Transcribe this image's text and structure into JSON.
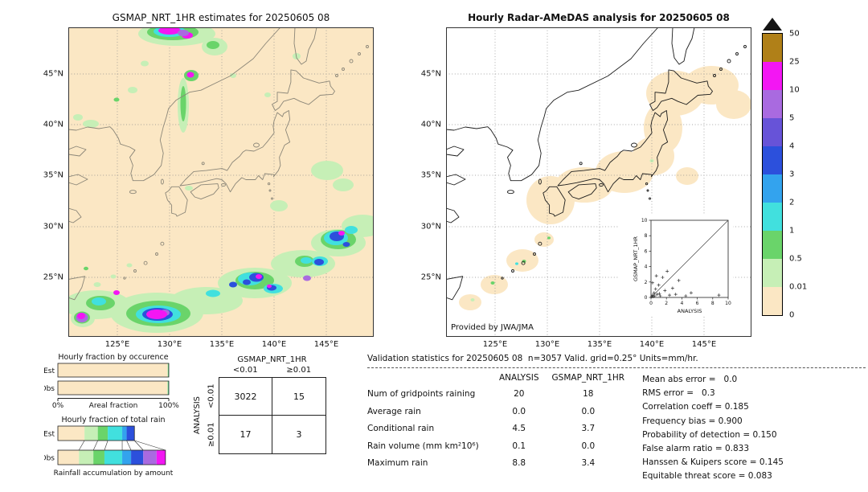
{
  "left_map": {
    "title": "GSMAP_NRT_1HR estimates for 20250605 08",
    "lat_ticks": [
      "45°N",
      "40°N",
      "35°N",
      "30°N",
      "25°N"
    ],
    "lon_ticks": [
      "125°E",
      "130°E",
      "135°E",
      "140°E",
      "145°E"
    ]
  },
  "right_map": {
    "title": "Hourly Radar-AMeDAS analysis for 20250605 08",
    "lat_ticks": [
      "45°N",
      "40°N",
      "35°N",
      "30°N",
      "25°N"
    ],
    "lon_ticks": [
      "125°E",
      "130°E",
      "135°E",
      "140°E",
      "145°E"
    ],
    "credit": "Provided by JWA/JMA"
  },
  "colorbar": {
    "unit": "mm/hr",
    "labels_top_to_bottom": [
      "50",
      "25",
      "10",
      "5",
      "4",
      "3",
      "2",
      "1",
      "0.5",
      "0.01",
      "0"
    ],
    "colors_bottom_to_top": [
      "#fbe7c4",
      "#c6efb6",
      "#6ad46a",
      "#41e0de",
      "#33a3ee",
      "#2c50dc",
      "#6753d8",
      "#a96ae0",
      "#f316f3",
      "#b08018"
    ],
    "arrow_color": "#151515"
  },
  "contingency": {
    "col_group_label": "GSMAP_NRT_1HR",
    "row_group_label": "ANALYSIS",
    "col_labels": [
      "<0.01",
      "≥0.01"
    ],
    "row_labels": [
      "<0.01",
      "≥0.01"
    ],
    "cells": [
      "3022",
      "15",
      "17",
      "3"
    ]
  },
  "stats": {
    "title": "Validation statistics for 20250605 08  n=3057 Valid. grid=0.25° Units=mm/hr.",
    "columns": [
      "ANALYSIS",
      "GSMAP_NRT_1HR"
    ],
    "rows": [
      {
        "label": "Num of gridpoints raining",
        "analysis": "20",
        "gsmap": "18"
      },
      {
        "label": "Average rain",
        "analysis": "0.0",
        "gsmap": "0.0"
      },
      {
        "label": "Conditional rain",
        "analysis": "4.5",
        "gsmap": "3.7"
      },
      {
        "label": "Rain volume (mm km²10⁶)",
        "analysis": "0.1",
        "gsmap": "0.0"
      },
      {
        "label": "Maximum rain",
        "analysis": "8.8",
        "gsmap": "3.4"
      }
    ],
    "scores": [
      {
        "label": "Mean abs error",
        "value": "0.0"
      },
      {
        "label": "RMS error",
        "value": "0.3"
      },
      {
        "label": "Correlation coeff",
        "value": "0.185"
      },
      {
        "label": "Frequency bias",
        "value": "0.900"
      },
      {
        "label": "Probability of detection",
        "value": "0.150"
      },
      {
        "label": "False alarm ratio",
        "value": "0.833"
      },
      {
        "label": "Hanssen & Kuipers score",
        "value": "0.145"
      },
      {
        "label": "Equitable threat score",
        "value": "0.083"
      }
    ]
  },
  "chart_data": [
    {
      "type": "bar",
      "title": "Hourly fraction by occurence",
      "xlabel": "Areal fraction",
      "categories": [
        "Est",
        "Obs"
      ],
      "xlim": [
        0,
        100
      ],
      "x_tick_labels": [
        "0%",
        "100%"
      ],
      "stacked": true,
      "series_est": [
        {
          "color_index": 0,
          "value": 98.8
        },
        {
          "color_index": 1,
          "value": 0.5
        },
        {
          "color_index": 2,
          "value": 0.4
        },
        {
          "color_index": 3,
          "value": 0.3
        }
      ],
      "series_obs": [
        {
          "color_index": 0,
          "value": 98.6
        },
        {
          "color_index": 1,
          "value": 0.6
        },
        {
          "color_index": 2,
          "value": 0.4
        },
        {
          "color_index": 3,
          "value": 0.4
        }
      ]
    },
    {
      "type": "bar",
      "title": "Hourly fraction of total rain",
      "xlabel": "Rainfall accumulation by amount",
      "categories": [
        "Est",
        "Obs"
      ],
      "xlim": [
        0,
        100
      ],
      "stacked": true,
      "series_est": [
        {
          "color_index": 0,
          "value": 24
        },
        {
          "color_index": 1,
          "value": 12
        },
        {
          "color_index": 2,
          "value": 9
        },
        {
          "color_index": 3,
          "value": 13
        },
        {
          "color_index": 4,
          "value": 4
        },
        {
          "color_index": 5,
          "value": 7
        }
      ],
      "series_obs": [
        {
          "color_index": 0,
          "value": 19
        },
        {
          "color_index": 1,
          "value": 13
        },
        {
          "color_index": 2,
          "value": 10
        },
        {
          "color_index": 3,
          "value": 16
        },
        {
          "color_index": 4,
          "value": 8
        },
        {
          "color_index": 5,
          "value": 11
        },
        {
          "color_index": 7,
          "value": 12
        },
        {
          "color_index": 8,
          "value": 8
        }
      ]
    },
    {
      "type": "scatter",
      "title": "",
      "xlabel": "ANALYSIS",
      "ylabel": "GSMAP_NRT_1HR",
      "xlim": [
        0,
        10
      ],
      "ylim": [
        0,
        10
      ],
      "x_ticks": [
        0,
        2,
        4,
        6,
        8,
        10
      ],
      "y_ticks": [
        0,
        2,
        4,
        6,
        8,
        10
      ],
      "diagonal": true,
      "points": [
        [
          0.1,
          0.1
        ],
        [
          0.2,
          0.3
        ],
        [
          0.3,
          0.1
        ],
        [
          0.4,
          0.6
        ],
        [
          0.5,
          0.2
        ],
        [
          0.6,
          1.1
        ],
        [
          0.8,
          0.4
        ],
        [
          1.0,
          1.6
        ],
        [
          1.2,
          0.2
        ],
        [
          1.5,
          2.6
        ],
        [
          1.8,
          0.9
        ],
        [
          2.1,
          3.4
        ],
        [
          2.4,
          0.3
        ],
        [
          2.8,
          1.2
        ],
        [
          3.2,
          0.4
        ],
        [
          3.6,
          2.2
        ],
        [
          4.5,
          0.2
        ],
        [
          5.2,
          0.6
        ],
        [
          8.8,
          0.3
        ],
        [
          0.2,
          1.9
        ],
        [
          0.7,
          2.8
        ],
        [
          1.1,
          0.5
        ]
      ]
    }
  ]
}
